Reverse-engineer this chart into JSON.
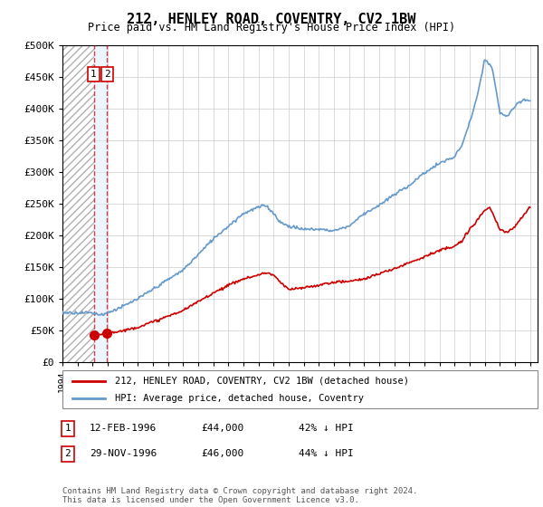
{
  "title": "212, HENLEY ROAD, COVENTRY, CV2 1BW",
  "subtitle": "Price paid vs. HM Land Registry's House Price Index (HPI)",
  "sale_info": [
    {
      "label": "1",
      "date": "12-FEB-1996",
      "price": "£44,000",
      "note": "42% ↓ HPI"
    },
    {
      "label": "2",
      "date": "29-NOV-1996",
      "price": "£46,000",
      "note": "44% ↓ HPI"
    }
  ],
  "legend_line1": "212, HENLEY ROAD, COVENTRY, CV2 1BW (detached house)",
  "legend_line2": "HPI: Average price, detached house, Coventry",
  "footer": "Contains HM Land Registry data © Crown copyright and database right 2024.\nThis data is licensed under the Open Government Licence v3.0.",
  "sale_color": "#cc0000",
  "hpi_color": "#6699cc",
  "sale_date_1": 1996.115,
  "sale_date_2": 1996.915,
  "sale_price_1": 44000,
  "sale_price_2": 46000,
  "ylim": [
    0,
    500000
  ],
  "yticks": [
    0,
    50000,
    100000,
    150000,
    200000,
    250000,
    300000,
    350000,
    400000,
    450000,
    500000
  ],
  "xlim_start": 1994,
  "xlim_end": 2025.5
}
